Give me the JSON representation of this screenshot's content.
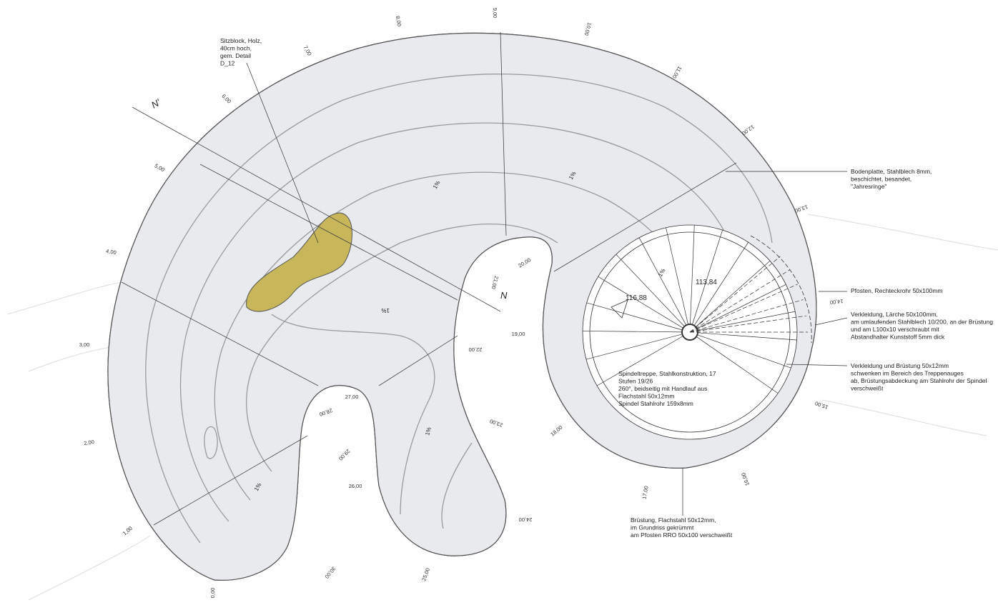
{
  "annotations": [
    {
      "lines": [
        "Sitzblock, Holz,",
        "40cm hoch,",
        "gem. Detail",
        "D_12"
      ]
    },
    {
      "lines": [
        "Bodenplatte, Stahlblech 8mm,",
        "beschichtet, besandet,",
        "\"Jahresringe\""
      ]
    },
    {
      "lines": [
        "Pfosten, Rechteckrohr 50x100mm"
      ]
    },
    {
      "lines": [
        "Verkleidung, Lärche 50x100mm,",
        "am umlaufenden Stahlblech 10/200, an der Brüstung",
        "und am L100x10 verschraubt mit",
        "Abstandhalter Kunststoff 5mm dick"
      ]
    },
    {
      "lines": [
        "Verkleidung und Brüstung 50x12mm",
        "schwenken im Bereich des Treppenauges",
        "ab, Brüstungsabdeckung am Stahlrohr der Spindel",
        "verschweißt"
      ]
    },
    {
      "lines": [
        "Spindeltreppe, Stahlkonstruktion, 17",
        "Stufen 19/26",
        "260°, beidseitig mit Handlauf aus",
        "Flachstahl 50x12mm",
        "Spindel Stahlrohr 159x8mm"
      ]
    },
    {
      "lines": [
        "Brüstung, Flachstahl 50x12mm,",
        "im Grundriss gekrümmt",
        "am Pfosten RRO 50x100 verschweißt"
      ]
    }
  ],
  "stations": [
    "0,00",
    "1,00",
    "2,00",
    "3,00",
    "4,00",
    "5,00",
    "6,00",
    "7,00",
    "8,00",
    "9,00",
    "10,00",
    "11,00",
    "12,00",
    "13,00",
    "14,00",
    "15,00",
    "16,00",
    "17,00",
    "18,00",
    "19,00",
    "20,00",
    "21,00",
    "22,00",
    "23,00",
    "24,00",
    "25,00",
    "26,00",
    "27,00",
    "28,00",
    "29,00",
    "30,00"
  ],
  "slopes": [
    "1%",
    "1%",
    "1%",
    "1%",
    "1%",
    "1%"
  ],
  "dimensions": [
    "116,88",
    "113,84"
  ],
  "section_marks": [
    "N'",
    "N"
  ]
}
